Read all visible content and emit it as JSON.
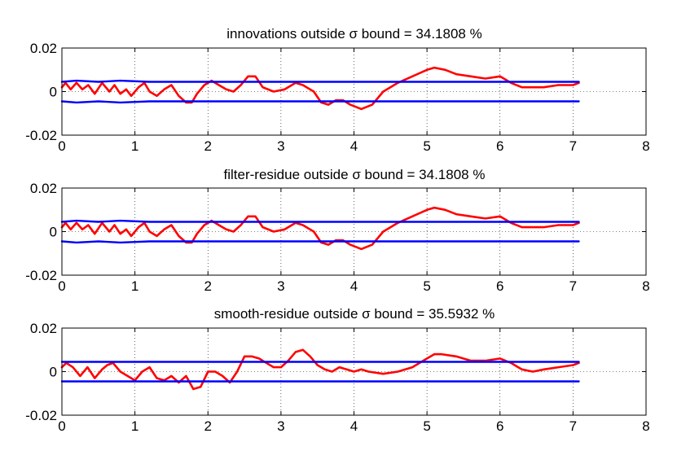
{
  "chart_data": [
    {
      "type": "line",
      "title": "innovations outside σ bound = 34.1808 %",
      "xlim": [
        0,
        8
      ],
      "ylim": [
        -0.02,
        0.02
      ],
      "xticks": [
        0,
        1,
        2,
        3,
        4,
        5,
        6,
        7,
        8
      ],
      "xtick_labels": [
        "0",
        "1",
        "2",
        "3",
        "4",
        "5",
        "6",
        "7",
        "8"
      ],
      "yticks": [
        -0.02,
        0,
        0.02
      ],
      "ytick_labels": [
        "-0.02",
        "0",
        "0.02"
      ],
      "grid": true,
      "series": [
        {
          "color": "#ff0000",
          "x": [
            0,
            0.05,
            0.12,
            0.2,
            0.28,
            0.36,
            0.45,
            0.55,
            0.65,
            0.72,
            0.8,
            0.88,
            0.95,
            1.05,
            1.13,
            1.2,
            1.3,
            1.4,
            1.5,
            1.6,
            1.7,
            1.78,
            1.85,
            1.95,
            2.05,
            2.15,
            2.25,
            2.35,
            2.45,
            2.55,
            2.65,
            2.75,
            2.9,
            3.05,
            3.2,
            3.3,
            3.45,
            3.55,
            3.65,
            3.75,
            3.85,
            3.95,
            4.1,
            4.25,
            4.4,
            4.6,
            4.8,
            5.0,
            5.1,
            5.25,
            5.4,
            5.6,
            5.8,
            6.0,
            6.15,
            6.3,
            6.45,
            6.6,
            6.8,
            7.0,
            7.08
          ],
          "y": [
            0.002,
            0.004,
            0.001,
            0.004,
            0.001,
            0.003,
            -0.001,
            0.004,
            0.0,
            0.003,
            -0.001,
            0.001,
            -0.002,
            0.002,
            0.004,
            0.0,
            -0.002,
            0.001,
            0.003,
            -0.002,
            -0.005,
            -0.005,
            -0.001,
            0.003,
            0.005,
            0.003,
            0.001,
            0.0,
            0.003,
            0.007,
            0.007,
            0.002,
            0.0,
            0.001,
            0.004,
            0.003,
            0.0,
            -0.005,
            -0.006,
            -0.004,
            -0.004,
            -0.006,
            -0.008,
            -0.006,
            0.0,
            0.004,
            0.007,
            0.01,
            0.011,
            0.01,
            0.008,
            0.007,
            0.006,
            0.007,
            0.004,
            0.002,
            0.002,
            0.002,
            0.003,
            0.003,
            0.004
          ]
        },
        {
          "color": "#0000ff",
          "x": [
            0,
            0.2,
            0.5,
            0.8,
            1.2,
            2.0,
            3.0,
            4.0,
            5.0,
            6.0,
            7.08
          ],
          "y": [
            0.0045,
            0.005,
            0.0045,
            0.005,
            0.0045,
            0.0045,
            0.0045,
            0.0045,
            0.0045,
            0.0045,
            0.0045
          ]
        },
        {
          "color": "#0000ff",
          "x": [
            0,
            0.2,
            0.5,
            0.8,
            1.2,
            2.0,
            3.0,
            4.0,
            5.0,
            6.0,
            7.08
          ],
          "y": [
            -0.0045,
            -0.005,
            -0.0045,
            -0.005,
            -0.0045,
            -0.0045,
            -0.0045,
            -0.0045,
            -0.0045,
            -0.0045,
            -0.0045
          ]
        }
      ]
    },
    {
      "type": "line",
      "title": "filter-residue outside σ bound = 34.1808 %",
      "xlim": [
        0,
        8
      ],
      "ylim": [
        -0.02,
        0.02
      ],
      "xticks": [
        0,
        1,
        2,
        3,
        4,
        5,
        6,
        7,
        8
      ],
      "xtick_labels": [
        "0",
        "1",
        "2",
        "3",
        "4",
        "5",
        "6",
        "7",
        "8"
      ],
      "yticks": [
        -0.02,
        0,
        0.02
      ],
      "ytick_labels": [
        "-0.02",
        "0",
        "0.02"
      ],
      "grid": true,
      "series": [
        {
          "color": "#ff0000",
          "x": [
            0,
            0.05,
            0.12,
            0.2,
            0.28,
            0.36,
            0.45,
            0.55,
            0.65,
            0.72,
            0.8,
            0.88,
            0.95,
            1.05,
            1.13,
            1.2,
            1.3,
            1.4,
            1.5,
            1.6,
            1.7,
            1.78,
            1.85,
            1.95,
            2.05,
            2.15,
            2.25,
            2.35,
            2.45,
            2.55,
            2.65,
            2.75,
            2.9,
            3.05,
            3.2,
            3.3,
            3.45,
            3.55,
            3.65,
            3.75,
            3.85,
            3.95,
            4.1,
            4.25,
            4.4,
            4.6,
            4.8,
            5.0,
            5.1,
            5.25,
            5.4,
            5.6,
            5.8,
            6.0,
            6.15,
            6.3,
            6.45,
            6.6,
            6.8,
            7.0,
            7.08
          ],
          "y": [
            0.002,
            0.004,
            0.001,
            0.004,
            0.001,
            0.003,
            -0.001,
            0.004,
            0.0,
            0.003,
            -0.001,
            0.001,
            -0.002,
            0.002,
            0.004,
            0.0,
            -0.002,
            0.001,
            0.003,
            -0.002,
            -0.005,
            -0.005,
            -0.001,
            0.003,
            0.005,
            0.003,
            0.001,
            0.0,
            0.003,
            0.007,
            0.007,
            0.002,
            0.0,
            0.001,
            0.004,
            0.003,
            0.0,
            -0.005,
            -0.006,
            -0.004,
            -0.004,
            -0.006,
            -0.008,
            -0.006,
            0.0,
            0.004,
            0.007,
            0.01,
            0.011,
            0.01,
            0.008,
            0.007,
            0.006,
            0.007,
            0.004,
            0.002,
            0.002,
            0.002,
            0.003,
            0.003,
            0.004
          ]
        },
        {
          "color": "#0000ff",
          "x": [
            0,
            0.2,
            0.5,
            0.8,
            1.2,
            2.0,
            3.0,
            4.0,
            5.0,
            6.0,
            7.08
          ],
          "y": [
            0.0045,
            0.005,
            0.0045,
            0.005,
            0.0045,
            0.0045,
            0.0045,
            0.0045,
            0.0045,
            0.0045,
            0.0045
          ]
        },
        {
          "color": "#0000ff",
          "x": [
            0,
            0.2,
            0.5,
            0.8,
            1.2,
            2.0,
            3.0,
            4.0,
            5.0,
            6.0,
            7.08
          ],
          "y": [
            -0.0045,
            -0.005,
            -0.0045,
            -0.005,
            -0.0045,
            -0.0045,
            -0.0045,
            -0.0045,
            -0.0045,
            -0.0045,
            -0.0045
          ]
        }
      ]
    },
    {
      "type": "line",
      "title": "smooth-residue outside σ bound = 35.5932 %",
      "xlim": [
        0,
        8
      ],
      "ylim": [
        -0.02,
        0.02
      ],
      "xticks": [
        0,
        1,
        2,
        3,
        4,
        5,
        6,
        7,
        8
      ],
      "xtick_labels": [
        "0",
        "1",
        "2",
        "3",
        "4",
        "5",
        "6",
        "7",
        "8"
      ],
      "yticks": [
        -0.02,
        0,
        0.02
      ],
      "ytick_labels": [
        "-0.02",
        "0",
        "0.02"
      ],
      "grid": true,
      "series": [
        {
          "color": "#ff0000",
          "x": [
            0,
            0.06,
            0.15,
            0.25,
            0.35,
            0.45,
            0.55,
            0.62,
            0.7,
            0.8,
            0.9,
            1.0,
            1.1,
            1.2,
            1.3,
            1.4,
            1.5,
            1.6,
            1.7,
            1.8,
            1.9,
            2.0,
            2.1,
            2.2,
            2.3,
            2.4,
            2.5,
            2.6,
            2.7,
            2.8,
            2.9,
            3.0,
            3.1,
            3.2,
            3.3,
            3.4,
            3.5,
            3.6,
            3.7,
            3.8,
            3.9,
            4.0,
            4.1,
            4.2,
            4.4,
            4.6,
            4.8,
            5.0,
            5.1,
            5.2,
            5.4,
            5.6,
            5.8,
            6.0,
            6.15,
            6.3,
            6.45,
            6.6,
            6.8,
            7.0,
            7.08
          ],
          "y": [
            0.002,
            0.004,
            0.002,
            -0.002,
            0.002,
            -0.003,
            0.001,
            0.003,
            0.004,
            0.0,
            -0.002,
            -0.004,
            0.0,
            0.002,
            -0.003,
            -0.004,
            -0.002,
            -0.005,
            -0.002,
            -0.008,
            -0.007,
            0.0,
            0.0,
            -0.002,
            -0.005,
            0.0,
            0.007,
            0.007,
            0.006,
            0.004,
            0.002,
            0.002,
            0.005,
            0.009,
            0.01,
            0.007,
            0.003,
            0.001,
            0.0,
            0.002,
            0.001,
            0.0,
            0.001,
            0.0,
            -0.001,
            0.0,
            0.002,
            0.006,
            0.008,
            0.008,
            0.007,
            0.005,
            0.005,
            0.006,
            0.004,
            0.001,
            0.0,
            0.001,
            0.002,
            0.003,
            0.004
          ]
        },
        {
          "color": "#0000ff",
          "x": [
            0,
            1.0,
            2.0,
            3.0,
            4.0,
            5.0,
            6.0,
            7.08
          ],
          "y": [
            0.0045,
            0.0045,
            0.0045,
            0.0045,
            0.0045,
            0.0045,
            0.0045,
            0.0045
          ]
        },
        {
          "color": "#0000ff",
          "x": [
            0,
            1.0,
            2.0,
            3.0,
            4.0,
            5.0,
            6.0,
            7.08
          ],
          "y": [
            -0.0045,
            -0.0045,
            -0.0045,
            -0.0045,
            -0.0045,
            -0.0045,
            -0.0045,
            -0.0045
          ]
        }
      ]
    }
  ]
}
